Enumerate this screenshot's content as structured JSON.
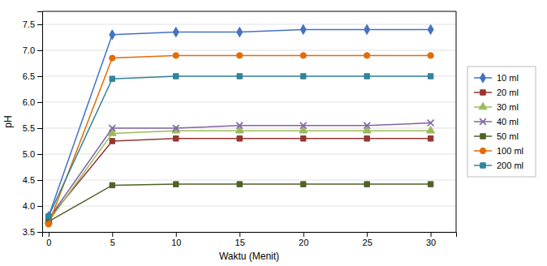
{
  "chart_data": {
    "type": "line",
    "x": [
      0,
      5,
      10,
      15,
      20,
      25,
      30
    ],
    "series": [
      {
        "name": "10 ml",
        "color": "#4472C4",
        "marker": "diamond",
        "values": [
          3.8,
          7.3,
          7.35,
          7.35,
          7.4,
          7.4,
          7.4
        ]
      },
      {
        "name": "20 ml",
        "color": "#943634",
        "marker": "square",
        "values": [
          3.75,
          5.25,
          5.3,
          5.3,
          5.3,
          5.3,
          5.3
        ]
      },
      {
        "name": "30 ml",
        "color": "#9BBB59",
        "marker": "triangle",
        "values": [
          3.7,
          5.4,
          5.45,
          5.45,
          5.45,
          5.45,
          5.45
        ]
      },
      {
        "name": "40 ml",
        "color": "#8064A2",
        "marker": "x",
        "values": [
          3.75,
          5.5,
          5.5,
          5.55,
          5.55,
          5.55,
          5.6
        ]
      },
      {
        "name": "50 ml",
        "color": "#4F6228",
        "marker": "square",
        "values": [
          3.7,
          4.4,
          4.42,
          4.42,
          4.42,
          4.42,
          4.42
        ]
      },
      {
        "name": "100 ml",
        "color": "#E36C09",
        "marker": "circle",
        "values": [
          3.65,
          6.85,
          6.9,
          6.9,
          6.9,
          6.9,
          6.9
        ]
      },
      {
        "name": "200 ml",
        "color": "#31849B",
        "marker": "square",
        "values": [
          3.8,
          6.45,
          6.5,
          6.5,
          6.5,
          6.5,
          6.5
        ]
      }
    ],
    "xlabel": "Waktu (Menit)",
    "ylabel": "pH",
    "xlim": [
      -0.5,
      32
    ],
    "xticks": [
      0,
      5,
      10,
      15,
      20,
      25,
      30
    ],
    "ylim": [
      3.5,
      7.75
    ],
    "yticks": [
      3.5,
      {
        "value": 4,
        "label": "4.0"
      },
      4.5,
      {
        "value": 5,
        "label": "5.0"
      },
      5.5,
      {
        "value": 6,
        "label": "6.0"
      },
      6.5,
      {
        "value": 7,
        "label": "7.0"
      },
      7.5
    ],
    "grid": true,
    "legend": "right"
  }
}
